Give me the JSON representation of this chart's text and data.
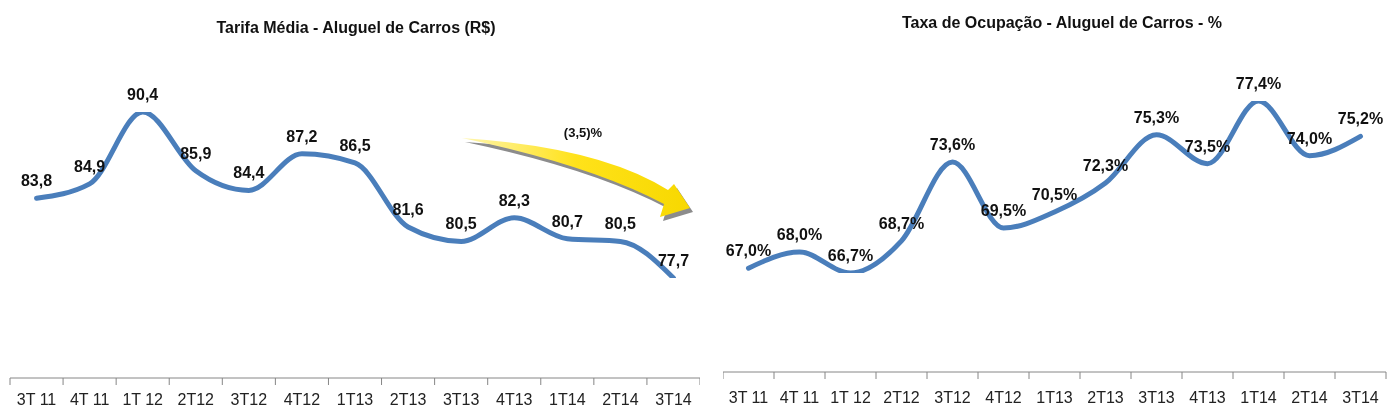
{
  "chart_data": [
    {
      "type": "line",
      "title": "Tarifa Média - Aluguel de Carros (R$)",
      "categories": [
        "3T 11",
        "4T 11",
        "1T 12",
        "2T12",
        "3T12",
        "4T12",
        "1T13",
        "2T13",
        "3T13",
        "4T13",
        "1T14",
        "2T14",
        "3T14"
      ],
      "series": [
        {
          "color": "#4a7ebb",
          "values": [
            83.8,
            84.9,
            90.4,
            85.9,
            84.4,
            87.2,
            86.5,
            81.6,
            80.5,
            82.3,
            80.7,
            80.5,
            77.7
          ],
          "value_labels": [
            "83,8",
            "84,9",
            "90,4",
            "85,9",
            "84,4",
            "87,2",
            "86,5",
            "81,6",
            "80,5",
            "82,3",
            "80,7",
            "80,5",
            "77,7"
          ]
        }
      ],
      "tick_labels": "x",
      "marker": "none",
      "annotations": [
        "(3,5)%"
      ]
    },
    {
      "type": "line",
      "title": "Taxa de Ocupação - Aluguel de Carros - %",
      "categories": [
        "3T 11",
        "4T 11",
        "1T 12",
        "2T12",
        "3T12",
        "4T12",
        "1T13",
        "2T13",
        "3T13",
        "4T13",
        "1T14",
        "2T14",
        "3T14"
      ],
      "series": [
        {
          "color": "#4a7ebb",
          "values": [
            67.0,
            68.0,
            66.7,
            68.7,
            73.6,
            69.5,
            70.5,
            72.3,
            75.3,
            73.5,
            77.4,
            74.0,
            75.2
          ],
          "value_labels": [
            "67,0%",
            "68,0%",
            "66,7%",
            "68,7%",
            "73,6%",
            "69,5%",
            "70,5%",
            "72,3%",
            "75,3%",
            "73,5%",
            "77,4%",
            "74,0%",
            "75,2%"
          ]
        }
      ],
      "tick_labels": "x",
      "marker": "none"
    }
  ]
}
